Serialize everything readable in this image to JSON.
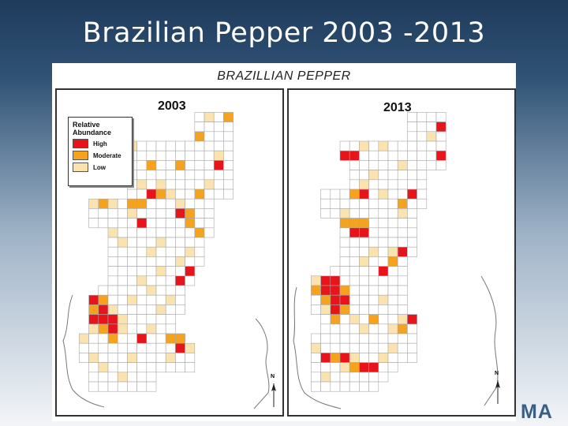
{
  "slide_title": "Brazilian Pepper 2003 -2013",
  "figure_title": "BRAZILLIAN PEPPER",
  "legend": {
    "title_line1": "Relative",
    "title_line2": "Abundance",
    "items": [
      {
        "label": "High",
        "color": "#e8141c"
      },
      {
        "label": "Moderate",
        "color": "#f5a21e"
      },
      {
        "label": "Low",
        "color": "#fbe3b0"
      }
    ]
  },
  "colors": {
    "high": "#e8141c",
    "moderate": "#f5a21e",
    "low": "#fbe3b0",
    "grid": "#a8a8a8",
    "coast": "#777777"
  },
  "north_label": "N",
  "logo_text": "MA",
  "panels": [
    {
      "year": "2003",
      "rows": [
        {
          "y": 2,
          "x0": 14,
          "x1": 17
        },
        {
          "y": 3,
          "x0": 14,
          "x1": 17
        },
        {
          "y": 4,
          "x0": 14,
          "x1": 17
        },
        {
          "y": 5,
          "x0": 6,
          "x1": 17
        },
        {
          "y": 6,
          "x0": 6,
          "x1": 17
        },
        {
          "y": 7,
          "x0": 8,
          "x1": 17
        },
        {
          "y": 8,
          "x0": 7,
          "x1": 17
        },
        {
          "y": 9,
          "x0": 7,
          "x1": 17
        },
        {
          "y": 10,
          "x0": 7,
          "x1": 17
        },
        {
          "y": 11,
          "x0": 3,
          "x1": 15
        },
        {
          "y": 12,
          "x0": 3,
          "x1": 15
        },
        {
          "y": 13,
          "x0": 3,
          "x1": 15
        },
        {
          "y": 14,
          "x0": 5,
          "x1": 15
        },
        {
          "y": 15,
          "x0": 5,
          "x1": 14
        },
        {
          "y": 16,
          "x0": 5,
          "x1": 14
        },
        {
          "y": 17,
          "x0": 5,
          "x1": 14
        },
        {
          "y": 18,
          "x0": 5,
          "x1": 13
        },
        {
          "y": 19,
          "x0": 5,
          "x1": 13
        },
        {
          "y": 20,
          "x0": 4,
          "x1": 12
        },
        {
          "y": 21,
          "x0": 3,
          "x1": 12
        },
        {
          "y": 22,
          "x0": 3,
          "x1": 12
        },
        {
          "y": 23,
          "x0": 3,
          "x1": 11
        },
        {
          "y": 24,
          "x0": 3,
          "x1": 11
        },
        {
          "y": 25,
          "x0": 2,
          "x1": 12
        },
        {
          "y": 26,
          "x0": 2,
          "x1": 13
        },
        {
          "y": 27,
          "x0": 2,
          "x1": 13
        },
        {
          "y": 28,
          "x0": 3,
          "x1": 13
        },
        {
          "y": 29,
          "x0": 3,
          "x1": 9
        },
        {
          "y": 30,
          "x0": 3,
          "x1": 9
        }
      ],
      "cells": [
        {
          "x": 15,
          "y": 2,
          "level": "low"
        },
        {
          "x": 17,
          "y": 2,
          "level": "moderate"
        },
        {
          "x": 14,
          "y": 4,
          "level": "moderate"
        },
        {
          "x": 16,
          "y": 6,
          "level": "low"
        },
        {
          "x": 7,
          "y": 5,
          "level": "low"
        },
        {
          "x": 9,
          "y": 7,
          "level": "moderate"
        },
        {
          "x": 12,
          "y": 7,
          "level": "moderate"
        },
        {
          "x": 16,
          "y": 7,
          "level": "high"
        },
        {
          "x": 10,
          "y": 9,
          "level": "low"
        },
        {
          "x": 8,
          "y": 9,
          "level": "low"
        },
        {
          "x": 9,
          "y": 10,
          "level": "high"
        },
        {
          "x": 10,
          "y": 10,
          "level": "moderate"
        },
        {
          "x": 11,
          "y": 10,
          "level": "low"
        },
        {
          "x": 15,
          "y": 9,
          "level": "low"
        },
        {
          "x": 14,
          "y": 10,
          "level": "moderate"
        },
        {
          "x": 3,
          "y": 11,
          "level": "low"
        },
        {
          "x": 4,
          "y": 11,
          "level": "moderate"
        },
        {
          "x": 5,
          "y": 11,
          "level": "low"
        },
        {
          "x": 7,
          "y": 11,
          "level": "moderate"
        },
        {
          "x": 8,
          "y": 11,
          "level": "moderate"
        },
        {
          "x": 12,
          "y": 11,
          "level": "low"
        },
        {
          "x": 13,
          "y": 12,
          "level": "moderate"
        },
        {
          "x": 12,
          "y": 12,
          "level": "high"
        },
        {
          "x": 7,
          "y": 12,
          "level": "low"
        },
        {
          "x": 8,
          "y": 13,
          "level": "high"
        },
        {
          "x": 13,
          "y": 13,
          "level": "moderate"
        },
        {
          "x": 14,
          "y": 14,
          "level": "moderate"
        },
        {
          "x": 5,
          "y": 14,
          "level": "low"
        },
        {
          "x": 6,
          "y": 15,
          "level": "low"
        },
        {
          "x": 10,
          "y": 15,
          "level": "low"
        },
        {
          "x": 9,
          "y": 16,
          "level": "low"
        },
        {
          "x": 13,
          "y": 16,
          "level": "low"
        },
        {
          "x": 12,
          "y": 17,
          "level": "low"
        },
        {
          "x": 10,
          "y": 18,
          "level": "low"
        },
        {
          "x": 13,
          "y": 18,
          "level": "high"
        },
        {
          "x": 8,
          "y": 19,
          "level": "low"
        },
        {
          "x": 12,
          "y": 19,
          "level": "high"
        },
        {
          "x": 9,
          "y": 20,
          "level": "low"
        },
        {
          "x": 7,
          "y": 21,
          "level": "low"
        },
        {
          "x": 11,
          "y": 21,
          "level": "low"
        },
        {
          "x": 3,
          "y": 21,
          "level": "high"
        },
        {
          "x": 4,
          "y": 21,
          "level": "moderate"
        },
        {
          "x": 3,
          "y": 22,
          "level": "moderate"
        },
        {
          "x": 4,
          "y": 22,
          "level": "high"
        },
        {
          "x": 5,
          "y": 22,
          "level": "low"
        },
        {
          "x": 3,
          "y": 23,
          "level": "high"
        },
        {
          "x": 4,
          "y": 23,
          "level": "high"
        },
        {
          "x": 5,
          "y": 23,
          "level": "high"
        },
        {
          "x": 6,
          "y": 23,
          "level": "low"
        },
        {
          "x": 3,
          "y": 24,
          "level": "low"
        },
        {
          "x": 4,
          "y": 24,
          "level": "moderate"
        },
        {
          "x": 5,
          "y": 24,
          "level": "high"
        },
        {
          "x": 6,
          "y": 24,
          "level": "low"
        },
        {
          "x": 5,
          "y": 25,
          "level": "moderate"
        },
        {
          "x": 2,
          "y": 25,
          "level": "low"
        },
        {
          "x": 9,
          "y": 24,
          "level": "low"
        },
        {
          "x": 10,
          "y": 22,
          "level": "low"
        },
        {
          "x": 8,
          "y": 25,
          "level": "high"
        },
        {
          "x": 11,
          "y": 25,
          "level": "moderate"
        },
        {
          "x": 12,
          "y": 24,
          "level": "low"
        },
        {
          "x": 12,
          "y": 25,
          "level": "moderate"
        },
        {
          "x": 13,
          "y": 26,
          "level": "low"
        },
        {
          "x": 12,
          "y": 26,
          "level": "high"
        },
        {
          "x": 11,
          "y": 27,
          "level": "low"
        },
        {
          "x": 7,
          "y": 27,
          "level": "low"
        },
        {
          "x": 4,
          "y": 28,
          "level": "low"
        },
        {
          "x": 6,
          "y": 29,
          "level": "low"
        },
        {
          "x": 3,
          "y": 27,
          "level": "low"
        }
      ]
    },
    {
      "year": "2013",
      "rows": [
        {
          "y": 2,
          "x0": 12,
          "x1": 15
        },
        {
          "y": 3,
          "x0": 12,
          "x1": 15
        },
        {
          "y": 4,
          "x0": 12,
          "x1": 15
        },
        {
          "y": 5,
          "x0": 5,
          "x1": 15
        },
        {
          "y": 6,
          "x0": 5,
          "x1": 15
        },
        {
          "y": 7,
          "x0": 6,
          "x1": 15
        },
        {
          "y": 8,
          "x0": 6,
          "x1": 13
        },
        {
          "y": 9,
          "x0": 6,
          "x1": 13
        },
        {
          "y": 10,
          "x0": 3,
          "x1": 13
        },
        {
          "y": 11,
          "x0": 3,
          "x1": 13
        },
        {
          "y": 12,
          "x0": 3,
          "x1": 12
        },
        {
          "y": 13,
          "x0": 5,
          "x1": 12
        },
        {
          "y": 14,
          "x0": 5,
          "x1": 12
        },
        {
          "y": 15,
          "x0": 5,
          "x1": 12
        },
        {
          "y": 16,
          "x0": 5,
          "x1": 12
        },
        {
          "y": 17,
          "x0": 5,
          "x1": 11
        },
        {
          "y": 18,
          "x0": 4,
          "x1": 11
        },
        {
          "y": 19,
          "x0": 2,
          "x1": 11
        },
        {
          "y": 20,
          "x0": 2,
          "x1": 11
        },
        {
          "y": 21,
          "x0": 2,
          "x1": 11
        },
        {
          "y": 22,
          "x0": 2,
          "x1": 11
        },
        {
          "y": 23,
          "x0": 3,
          "x1": 12
        },
        {
          "y": 24,
          "x0": 3,
          "x1": 12
        },
        {
          "y": 25,
          "x0": 2,
          "x1": 12
        },
        {
          "y": 26,
          "x0": 2,
          "x1": 12
        },
        {
          "y": 27,
          "x0": 2,
          "x1": 12
        },
        {
          "y": 28,
          "x0": 2,
          "x1": 10
        },
        {
          "y": 29,
          "x0": 2,
          "x1": 9
        },
        {
          "y": 30,
          "x0": 2,
          "x1": 8
        }
      ],
      "cells": [
        {
          "x": 15,
          "y": 3,
          "level": "high"
        },
        {
          "x": 15,
          "y": 6,
          "level": "high"
        },
        {
          "x": 14,
          "y": 4,
          "level": "low"
        },
        {
          "x": 5,
          "y": 6,
          "level": "high"
        },
        {
          "x": 6,
          "y": 6,
          "level": "high"
        },
        {
          "x": 7,
          "y": 5,
          "level": "low"
        },
        {
          "x": 9,
          "y": 5,
          "level": "low"
        },
        {
          "x": 11,
          "y": 7,
          "level": "low"
        },
        {
          "x": 8,
          "y": 8,
          "level": "low"
        },
        {
          "x": 7,
          "y": 9,
          "level": "low"
        },
        {
          "x": 6,
          "y": 10,
          "level": "moderate"
        },
        {
          "x": 7,
          "y": 10,
          "level": "high"
        },
        {
          "x": 9,
          "y": 10,
          "level": "low"
        },
        {
          "x": 12,
          "y": 10,
          "level": "high"
        },
        {
          "x": 11,
          "y": 11,
          "level": "moderate"
        },
        {
          "x": 11,
          "y": 12,
          "level": "low"
        },
        {
          "x": 5,
          "y": 12,
          "level": "low"
        },
        {
          "x": 5,
          "y": 13,
          "level": "moderate"
        },
        {
          "x": 6,
          "y": 13,
          "level": "moderate"
        },
        {
          "x": 7,
          "y": 13,
          "level": "moderate"
        },
        {
          "x": 6,
          "y": 14,
          "level": "high"
        },
        {
          "x": 7,
          "y": 14,
          "level": "high"
        },
        {
          "x": 8,
          "y": 16,
          "level": "low"
        },
        {
          "x": 10,
          "y": 16,
          "level": "low"
        },
        {
          "x": 11,
          "y": 16,
          "level": "high"
        },
        {
          "x": 10,
          "y": 17,
          "level": "moderate"
        },
        {
          "x": 9,
          "y": 18,
          "level": "high"
        },
        {
          "x": 7,
          "y": 17,
          "level": "low"
        },
        {
          "x": 2,
          "y": 19,
          "level": "low"
        },
        {
          "x": 3,
          "y": 18,
          "level": "low"
        },
        {
          "x": 3,
          "y": 19,
          "level": "high"
        },
        {
          "x": 4,
          "y": 19,
          "level": "high"
        },
        {
          "x": 2,
          "y": 20,
          "level": "moderate"
        },
        {
          "x": 3,
          "y": 20,
          "level": "high"
        },
        {
          "x": 4,
          "y": 20,
          "level": "high"
        },
        {
          "x": 5,
          "y": 20,
          "level": "moderate"
        },
        {
          "x": 3,
          "y": 21,
          "level": "moderate"
        },
        {
          "x": 4,
          "y": 21,
          "level": "high"
        },
        {
          "x": 5,
          "y": 21,
          "level": "high"
        },
        {
          "x": 4,
          "y": 22,
          "level": "high"
        },
        {
          "x": 5,
          "y": 22,
          "level": "moderate"
        },
        {
          "x": 3,
          "y": 22,
          "level": "low"
        },
        {
          "x": 4,
          "y": 23,
          "level": "moderate"
        },
        {
          "x": 6,
          "y": 23,
          "level": "low"
        },
        {
          "x": 9,
          "y": 21,
          "level": "low"
        },
        {
          "x": 8,
          "y": 23,
          "level": "moderate"
        },
        {
          "x": 11,
          "y": 23,
          "level": "low"
        },
        {
          "x": 11,
          "y": 24,
          "level": "moderate"
        },
        {
          "x": 12,
          "y": 23,
          "level": "high"
        },
        {
          "x": 10,
          "y": 24,
          "level": "low"
        },
        {
          "x": 7,
          "y": 24,
          "level": "low"
        },
        {
          "x": 2,
          "y": 26,
          "level": "low"
        },
        {
          "x": 3,
          "y": 27,
          "level": "high"
        },
        {
          "x": 4,
          "y": 27,
          "level": "moderate"
        },
        {
          "x": 5,
          "y": 27,
          "level": "high"
        },
        {
          "x": 6,
          "y": 27,
          "level": "low"
        },
        {
          "x": 5,
          "y": 28,
          "level": "low"
        },
        {
          "x": 7,
          "y": 28,
          "level": "high"
        },
        {
          "x": 8,
          "y": 28,
          "level": "high"
        },
        {
          "x": 6,
          "y": 28,
          "level": "moderate"
        },
        {
          "x": 9,
          "y": 27,
          "level": "low"
        },
        {
          "x": 10,
          "y": 26,
          "level": "low"
        },
        {
          "x": 3,
          "y": 29,
          "level": "low"
        }
      ]
    }
  ]
}
